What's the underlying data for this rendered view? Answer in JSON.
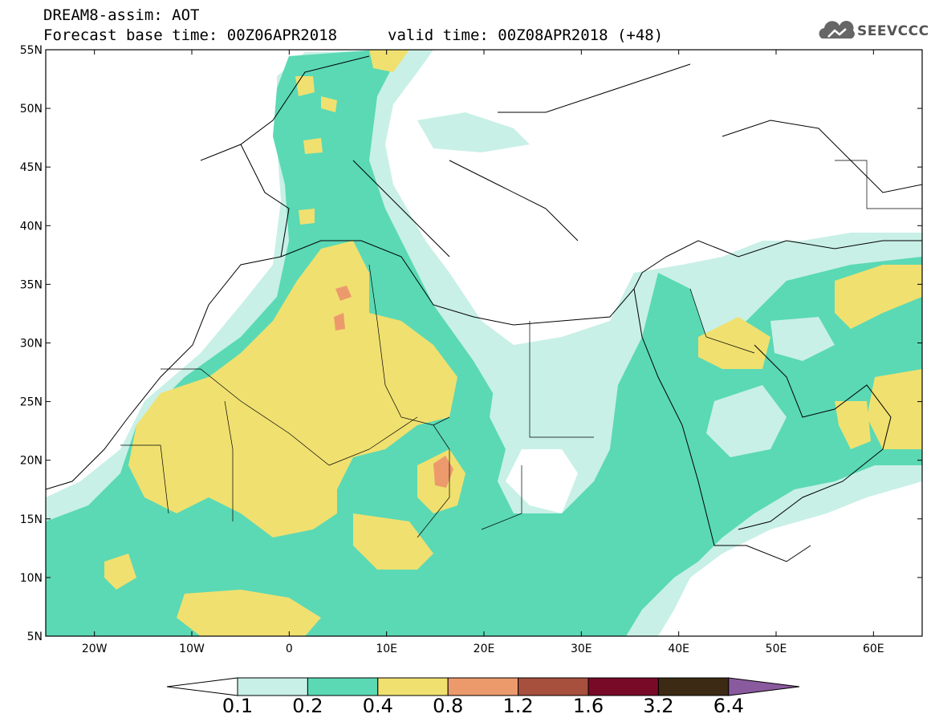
{
  "header": {
    "title": "DREAM8-assim: AOT",
    "base_time": "Forecast base time: 00Z06APR2018",
    "valid_time": "valid time: 00Z08APR2018 (+48)"
  },
  "logo": {
    "text": "SEEVCCC",
    "icon": "cloud-logo-icon"
  },
  "map": {
    "lat_labels": [
      "55N",
      "50N",
      "45N",
      "40N",
      "35N",
      "30N",
      "25N",
      "20N",
      "15N",
      "10N",
      "5N"
    ],
    "lon_labels": [
      "20W",
      "10W",
      "0",
      "10E",
      "20E",
      "30E",
      "40E",
      "50E",
      "60E"
    ],
    "lon_range": [
      -25,
      65
    ],
    "lat_range": [
      5,
      55
    ]
  },
  "colorbar": {
    "labels": [
      "0.1",
      "0.2",
      "0.4",
      "0.8",
      "1.2",
      "1.6",
      "3.2",
      "6.4"
    ],
    "colors": [
      "#ffffff",
      "#c8f0e6",
      "#5ad9b4",
      "#f0e070",
      "#ec9a6c",
      "#a8503e",
      "#780a28",
      "#3c2a14",
      "#8a5a9e"
    ]
  },
  "colors": {
    "c1": "#c8f0e6",
    "c2": "#5ad9b4",
    "c3": "#f0e070",
    "c4": "#ec9a6c"
  }
}
